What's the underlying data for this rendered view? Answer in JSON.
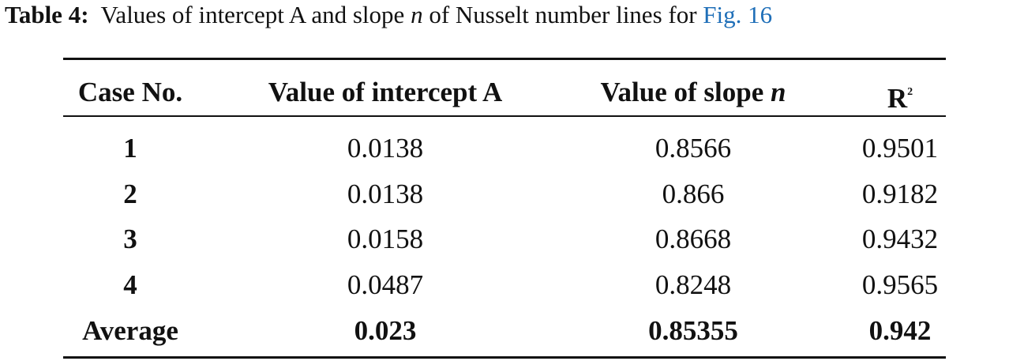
{
  "caption": {
    "label": "Table 4:",
    "text_before": "Values of intercept A and slope",
    "italic": "n",
    "text_after": "of Nusselt number lines for",
    "link": "Fig. 16"
  },
  "table": {
    "header": {
      "case": "Case No.",
      "intercept": "Value of intercept A",
      "slope": "Value of slope",
      "slope_italic": "n",
      "r2": "R",
      "r2_sup": "2"
    },
    "rows": [
      [
        "1",
        "0.0138",
        "0.8566",
        "0.9501"
      ],
      [
        "2",
        "0.0138",
        "0.866",
        "0.9182"
      ],
      [
        "3",
        "0.0158",
        "0.8668",
        "0.9432"
      ],
      [
        "4",
        "0.0487",
        "0.8248",
        "0.9565"
      ]
    ],
    "average": [
      "Average",
      "0.023",
      "0.85355",
      "0.942"
    ]
  }
}
